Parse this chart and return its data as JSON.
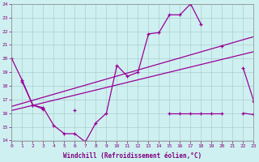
{
  "xlabel": "Windchill (Refroidissement éolien,°C)",
  "x": [
    0,
    1,
    2,
    3,
    4,
    5,
    6,
    7,
    8,
    9,
    10,
    11,
    12,
    13,
    14,
    15,
    16,
    17,
    18,
    19,
    20,
    21,
    22,
    23
  ],
  "line1": [
    20.0,
    18.4,
    16.6,
    16.4,
    15.1,
    14.5,
    14.5,
    13.9,
    15.3,
    16.0,
    19.5,
    18.7,
    19.0,
    21.8,
    21.9,
    23.2,
    23.2,
    24.0,
    22.5,
    null,
    20.9,
    null,
    19.3,
    16.9
  ],
  "line2_full": [
    null,
    18.3,
    16.6,
    16.3,
    null,
    null,
    16.2,
    null,
    null,
    null,
    null,
    null,
    null,
    null,
    null,
    16.0,
    16.0,
    16.0,
    16.0,
    16.0,
    16.0,
    null,
    16.0,
    15.9
  ],
  "line3_x": [
    0,
    23
  ],
  "line3_y": [
    16.2,
    20.5
  ],
  "line4_x": [
    0,
    23
  ],
  "line4_y": [
    16.5,
    21.6
  ],
  "ylim": [
    14,
    24
  ],
  "yticks": [
    14,
    15,
    16,
    17,
    18,
    19,
    20,
    21,
    22,
    23,
    24
  ],
  "xlim": [
    0,
    23
  ],
  "line_color": "#990099",
  "bg_color": "#cff0f0",
  "grid_color": "#aacece",
  "label_color": "#800080"
}
